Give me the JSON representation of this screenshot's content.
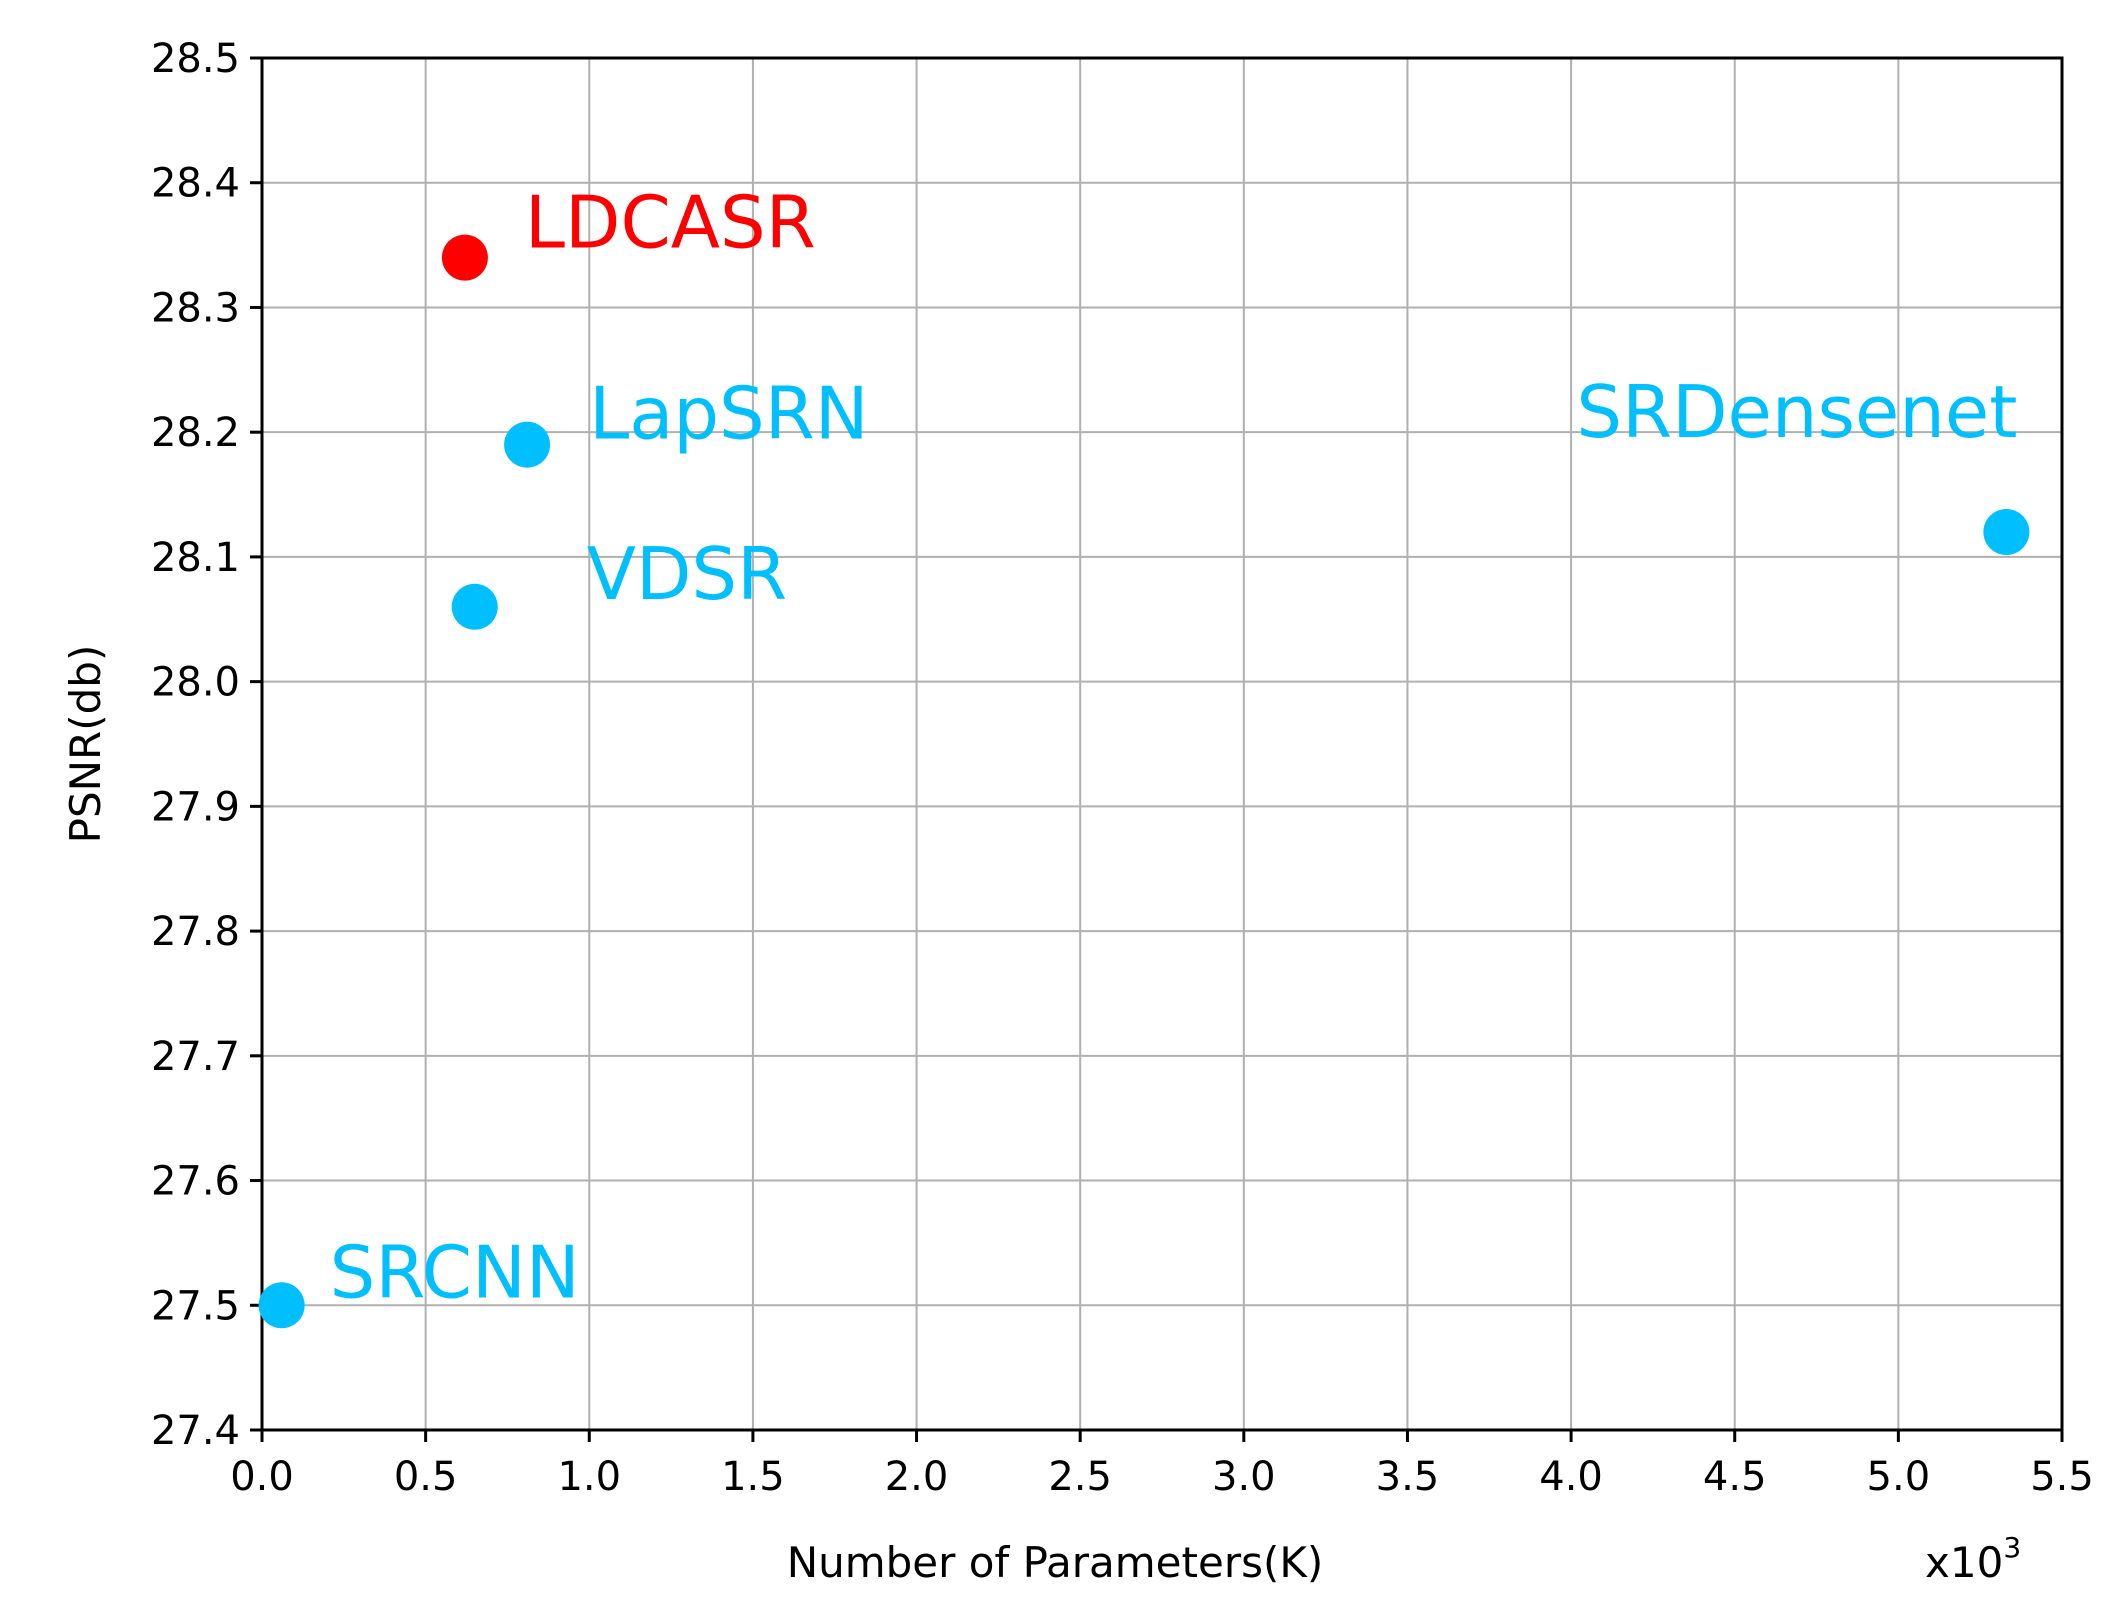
{
  "chart_data": {
    "type": "scatter",
    "title": "",
    "xlabel": "Number of Parameters(K)",
    "ylabel": "PSNR(db)",
    "x_multiplier_label": "x10",
    "x_multiplier_exponent": "3",
    "xlim": [
      0.0,
      5.5
    ],
    "ylim": [
      27.4,
      28.5
    ],
    "xticks": [
      "0.0",
      "0.5",
      "1.0",
      "1.5",
      "2.0",
      "2.5",
      "3.0",
      "3.5",
      "4.0",
      "4.5",
      "5.0",
      "5.5"
    ],
    "yticks": [
      "27.4",
      "27.5",
      "27.6",
      "27.7",
      "27.8",
      "27.9",
      "28.0",
      "28.1",
      "28.2",
      "28.3",
      "28.4",
      "28.5"
    ],
    "grid": true,
    "points": [
      {
        "label": "LDCASR",
        "x": 0.62,
        "y": 28.34,
        "color": "#ff0000"
      },
      {
        "label": "LapSRN",
        "x": 0.81,
        "y": 28.19,
        "color": "#00bfff"
      },
      {
        "label": "VDSR",
        "x": 0.65,
        "y": 28.06,
        "color": "#00bfff"
      },
      {
        "label": "SRDensenet",
        "x": 5.33,
        "y": 28.12,
        "color": "#00bfff"
      },
      {
        "label": "SRCNN",
        "x": 0.06,
        "y": 27.5,
        "color": "#00bfff"
      }
    ]
  }
}
